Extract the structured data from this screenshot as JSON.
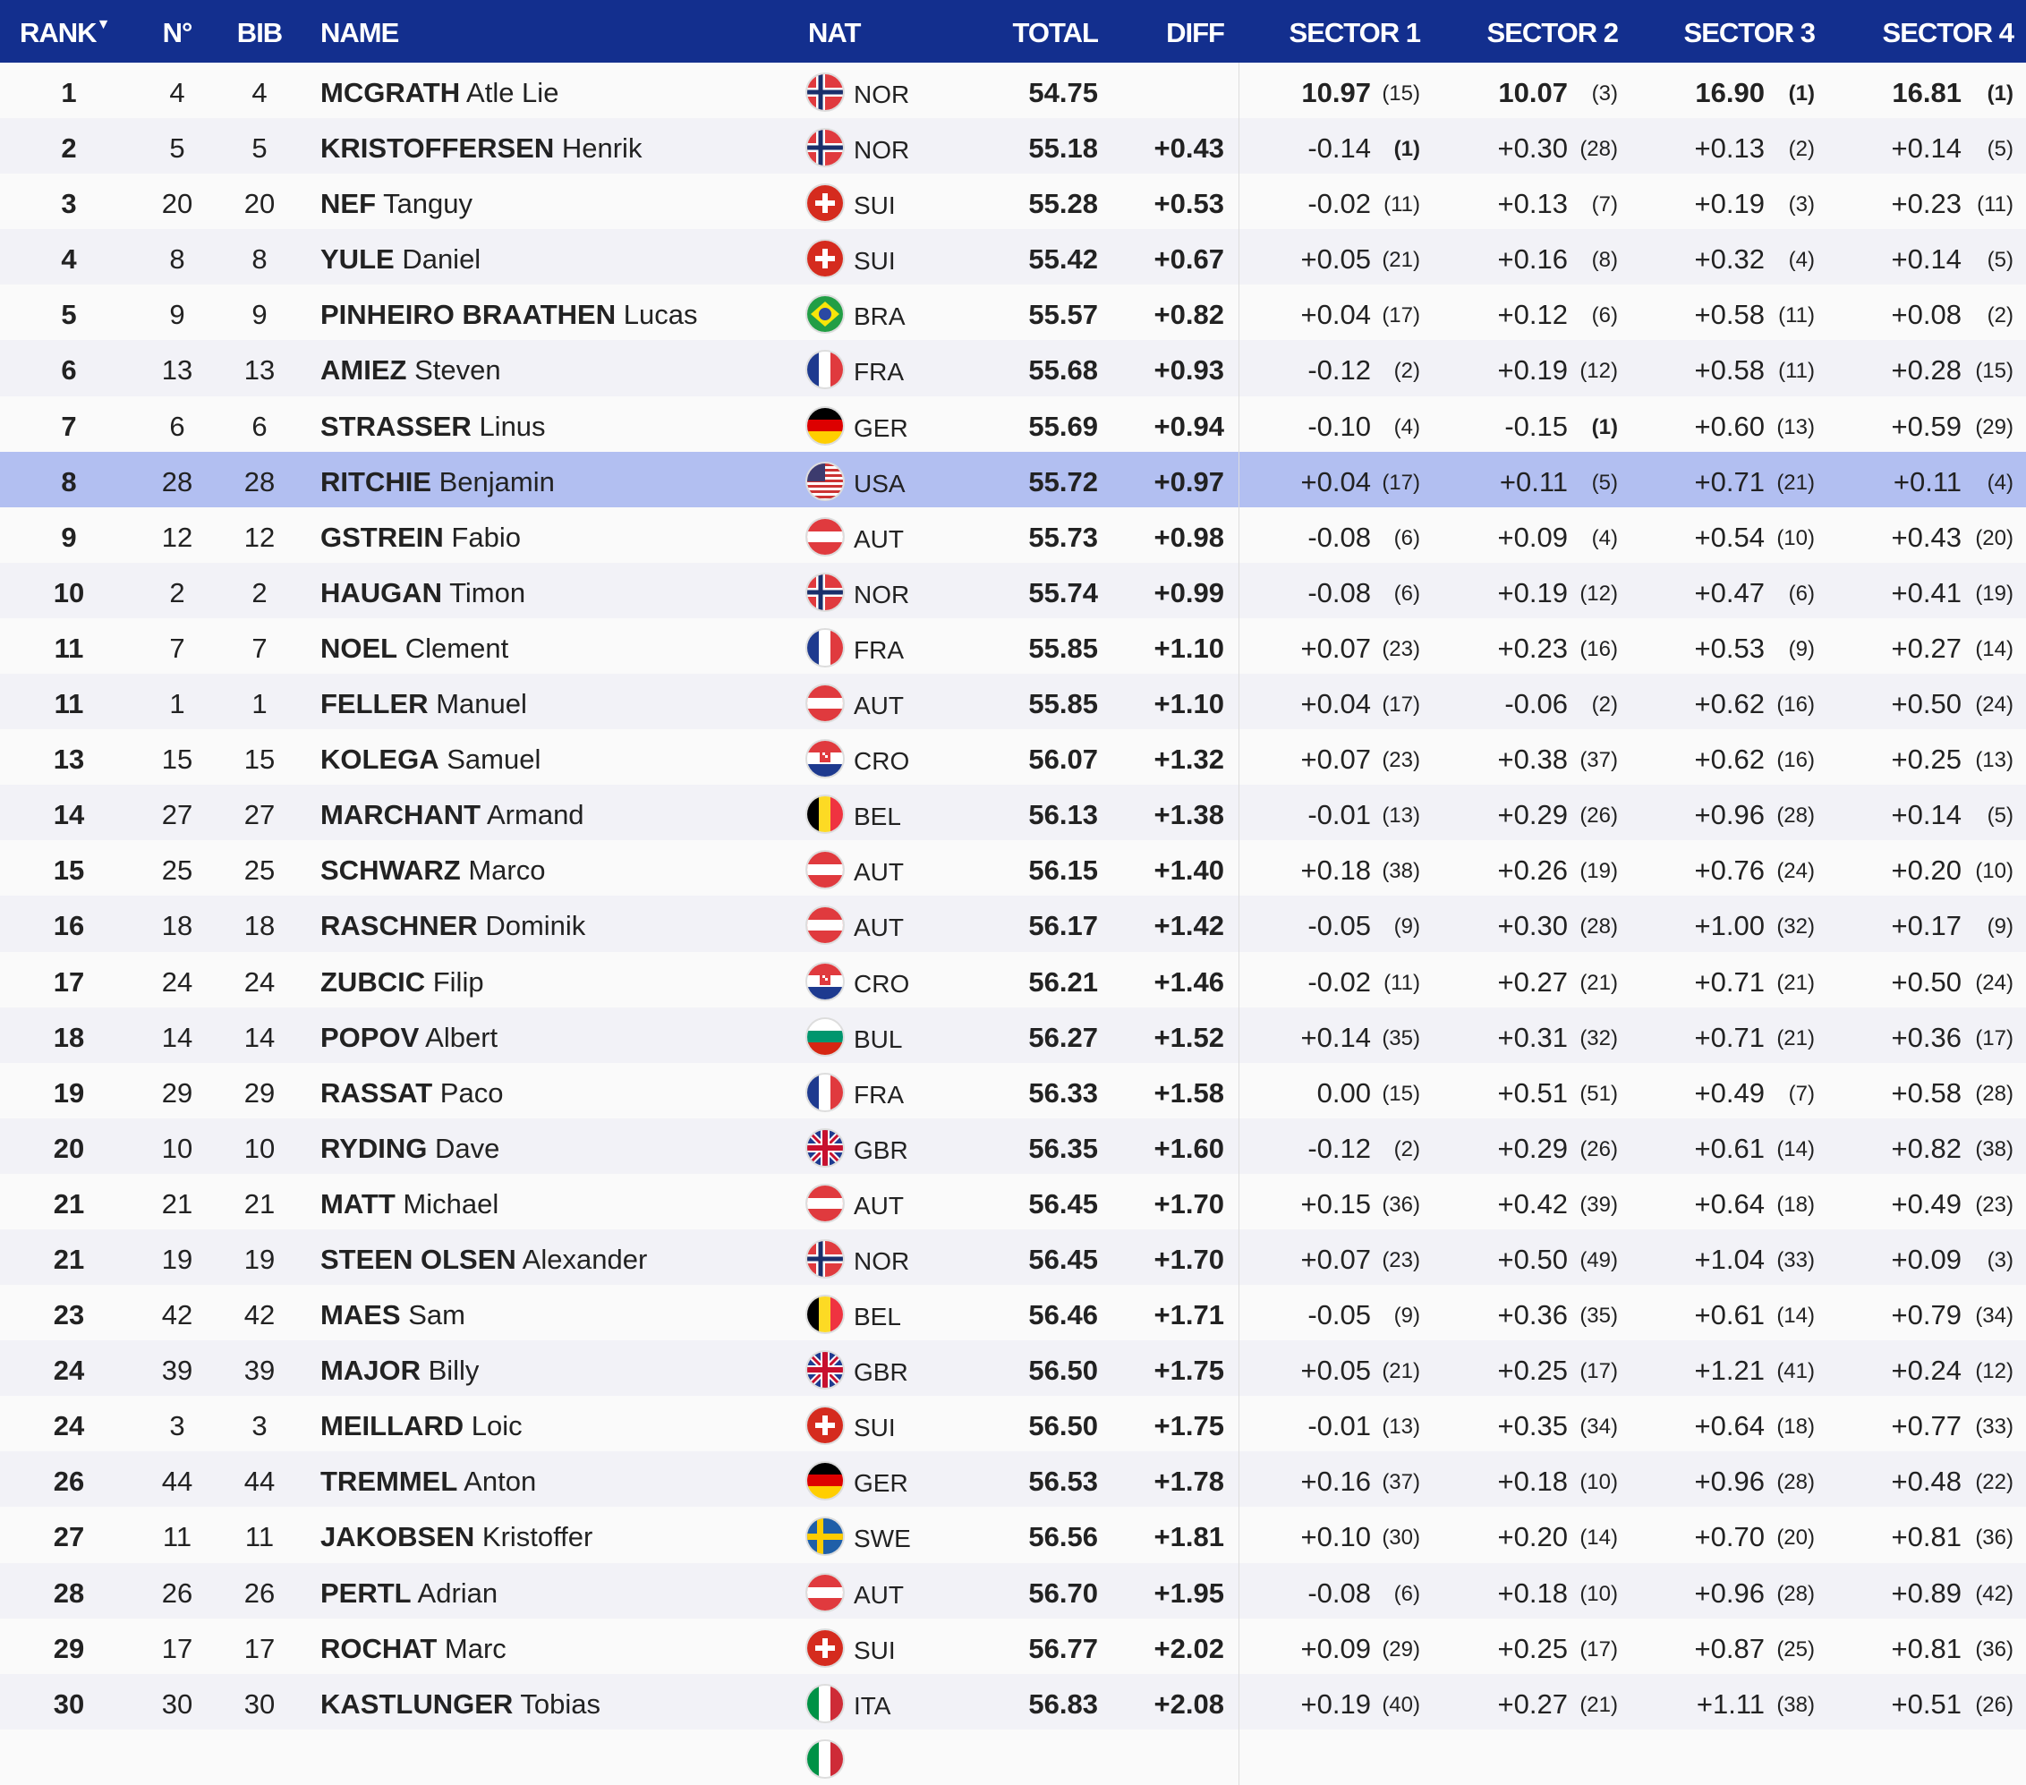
{
  "header": {
    "rank": "RANK",
    "sort_icon": "caret-down",
    "no": "N°",
    "bib": "BIB",
    "name": "NAME",
    "nat": "NAT",
    "total": "TOTAL",
    "diff": "DIFF",
    "s1": "SECTOR 1",
    "s2": "SECTOR 2",
    "s3": "SECTOR 3",
    "s4": "SECTOR 4"
  },
  "colors": {
    "header": "#132f8e",
    "highlight": "#b2bff1"
  },
  "highlighted_rank_row": 8,
  "rows": [
    {
      "rank": "1",
      "no": "4",
      "bib": "4",
      "last": "MCGRATH",
      "first": "Atle Lie",
      "nat": "NOR",
      "total": "54.75",
      "diff": "",
      "s": [
        [
          "10.97",
          "(15)"
        ],
        [
          "10.07",
          "(3)"
        ],
        [
          "16.90",
          "(1)"
        ],
        [
          "16.81",
          "(1)"
        ]
      ]
    },
    {
      "rank": "2",
      "no": "5",
      "bib": "5",
      "last": "KRISTOFFERSEN",
      "first": "Henrik",
      "nat": "NOR",
      "total": "55.18",
      "diff": "+0.43",
      "s": [
        [
          "-0.14",
          "(1)"
        ],
        [
          "+0.30",
          "(28)"
        ],
        [
          "+0.13",
          "(2)"
        ],
        [
          "+0.14",
          "(5)"
        ]
      ]
    },
    {
      "rank": "3",
      "no": "20",
      "bib": "20",
      "last": "NEF",
      "first": "Tanguy",
      "nat": "SUI",
      "total": "55.28",
      "diff": "+0.53",
      "s": [
        [
          "-0.02",
          "(11)"
        ],
        [
          "+0.13",
          "(7)"
        ],
        [
          "+0.19",
          "(3)"
        ],
        [
          "+0.23",
          "(11)"
        ]
      ]
    },
    {
      "rank": "4",
      "no": "8",
      "bib": "8",
      "last": "YULE",
      "first": "Daniel",
      "nat": "SUI",
      "total": "55.42",
      "diff": "+0.67",
      "s": [
        [
          "+0.05",
          "(21)"
        ],
        [
          "+0.16",
          "(8)"
        ],
        [
          "+0.32",
          "(4)"
        ],
        [
          "+0.14",
          "(5)"
        ]
      ]
    },
    {
      "rank": "5",
      "no": "9",
      "bib": "9",
      "last": "PINHEIRO BRAATHEN",
      "first": "Lucas",
      "nat": "BRA",
      "total": "55.57",
      "diff": "+0.82",
      "s": [
        [
          "+0.04",
          "(17)"
        ],
        [
          "+0.12",
          "(6)"
        ],
        [
          "+0.58",
          "(11)"
        ],
        [
          "+0.08",
          "(2)"
        ]
      ]
    },
    {
      "rank": "6",
      "no": "13",
      "bib": "13",
      "last": "AMIEZ",
      "first": "Steven",
      "nat": "FRA",
      "total": "55.68",
      "diff": "+0.93",
      "s": [
        [
          "-0.12",
          "(2)"
        ],
        [
          "+0.19",
          "(12)"
        ],
        [
          "+0.58",
          "(11)"
        ],
        [
          "+0.28",
          "(15)"
        ]
      ]
    },
    {
      "rank": "7",
      "no": "6",
      "bib": "6",
      "last": "STRASSER",
      "first": "Linus",
      "nat": "GER",
      "total": "55.69",
      "diff": "+0.94",
      "s": [
        [
          "-0.10",
          "(4)"
        ],
        [
          "-0.15",
          "(1)"
        ],
        [
          "+0.60",
          "(13)"
        ],
        [
          "+0.59",
          "(29)"
        ]
      ]
    },
    {
      "rank": "8",
      "no": "28",
      "bib": "28",
      "last": "RITCHIE",
      "first": "Benjamin",
      "nat": "USA",
      "total": "55.72",
      "diff": "+0.97",
      "s": [
        [
          "+0.04",
          "(17)"
        ],
        [
          "+0.11",
          "(5)"
        ],
        [
          "+0.71",
          "(21)"
        ],
        [
          "+0.11",
          "(4)"
        ]
      ]
    },
    {
      "rank": "9",
      "no": "12",
      "bib": "12",
      "last": "GSTREIN",
      "first": "Fabio",
      "nat": "AUT",
      "total": "55.73",
      "diff": "+0.98",
      "s": [
        [
          "-0.08",
          "(6)"
        ],
        [
          "+0.09",
          "(4)"
        ],
        [
          "+0.54",
          "(10)"
        ],
        [
          "+0.43",
          "(20)"
        ]
      ]
    },
    {
      "rank": "10",
      "no": "2",
      "bib": "2",
      "last": "HAUGAN",
      "first": "Timon",
      "nat": "NOR",
      "total": "55.74",
      "diff": "+0.99",
      "s": [
        [
          "-0.08",
          "(6)"
        ],
        [
          "+0.19",
          "(12)"
        ],
        [
          "+0.47",
          "(6)"
        ],
        [
          "+0.41",
          "(19)"
        ]
      ]
    },
    {
      "rank": "11",
      "no": "7",
      "bib": "7",
      "last": "NOEL",
      "first": "Clement",
      "nat": "FRA",
      "total": "55.85",
      "diff": "+1.10",
      "s": [
        [
          "+0.07",
          "(23)"
        ],
        [
          "+0.23",
          "(16)"
        ],
        [
          "+0.53",
          "(9)"
        ],
        [
          "+0.27",
          "(14)"
        ]
      ]
    },
    {
      "rank": "11",
      "no": "1",
      "bib": "1",
      "last": "FELLER",
      "first": "Manuel",
      "nat": "AUT",
      "total": "55.85",
      "diff": "+1.10",
      "s": [
        [
          "+0.04",
          "(17)"
        ],
        [
          "-0.06",
          "(2)"
        ],
        [
          "+0.62",
          "(16)"
        ],
        [
          "+0.50",
          "(24)"
        ]
      ]
    },
    {
      "rank": "13",
      "no": "15",
      "bib": "15",
      "last": "KOLEGA",
      "first": "Samuel",
      "nat": "CRO",
      "total": "56.07",
      "diff": "+1.32",
      "s": [
        [
          "+0.07",
          "(23)"
        ],
        [
          "+0.38",
          "(37)"
        ],
        [
          "+0.62",
          "(16)"
        ],
        [
          "+0.25",
          "(13)"
        ]
      ]
    },
    {
      "rank": "14",
      "no": "27",
      "bib": "27",
      "last": "MARCHANT",
      "first": "Armand",
      "nat": "BEL",
      "total": "56.13",
      "diff": "+1.38",
      "s": [
        [
          "-0.01",
          "(13)"
        ],
        [
          "+0.29",
          "(26)"
        ],
        [
          "+0.96",
          "(28)"
        ],
        [
          "+0.14",
          "(5)"
        ]
      ]
    },
    {
      "rank": "15",
      "no": "25",
      "bib": "25",
      "last": "SCHWARZ",
      "first": "Marco",
      "nat": "AUT",
      "total": "56.15",
      "diff": "+1.40",
      "s": [
        [
          "+0.18",
          "(38)"
        ],
        [
          "+0.26",
          "(19)"
        ],
        [
          "+0.76",
          "(24)"
        ],
        [
          "+0.20",
          "(10)"
        ]
      ]
    },
    {
      "rank": "16",
      "no": "18",
      "bib": "18",
      "last": "RASCHNER",
      "first": "Dominik",
      "nat": "AUT",
      "total": "56.17",
      "diff": "+1.42",
      "s": [
        [
          "-0.05",
          "(9)"
        ],
        [
          "+0.30",
          "(28)"
        ],
        [
          "+1.00",
          "(32)"
        ],
        [
          "+0.17",
          "(9)"
        ]
      ]
    },
    {
      "rank": "17",
      "no": "24",
      "bib": "24",
      "last": "ZUBCIC",
      "first": "Filip",
      "nat": "CRO",
      "total": "56.21",
      "diff": "+1.46",
      "s": [
        [
          "-0.02",
          "(11)"
        ],
        [
          "+0.27",
          "(21)"
        ],
        [
          "+0.71",
          "(21)"
        ],
        [
          "+0.50",
          "(24)"
        ]
      ]
    },
    {
      "rank": "18",
      "no": "14",
      "bib": "14",
      "last": "POPOV",
      "first": "Albert",
      "nat": "BUL",
      "total": "56.27",
      "diff": "+1.52",
      "s": [
        [
          "+0.14",
          "(35)"
        ],
        [
          "+0.31",
          "(32)"
        ],
        [
          "+0.71",
          "(21)"
        ],
        [
          "+0.36",
          "(17)"
        ]
      ]
    },
    {
      "rank": "19",
      "no": "29",
      "bib": "29",
      "last": "RASSAT",
      "first": "Paco",
      "nat": "FRA",
      "total": "56.33",
      "diff": "+1.58",
      "s": [
        [
          "0.00",
          "(15)"
        ],
        [
          "+0.51",
          "(51)"
        ],
        [
          "+0.49",
          "(7)"
        ],
        [
          "+0.58",
          "(28)"
        ]
      ]
    },
    {
      "rank": "20",
      "no": "10",
      "bib": "10",
      "last": "RYDING",
      "first": "Dave",
      "nat": "GBR",
      "total": "56.35",
      "diff": "+1.60",
      "s": [
        [
          "-0.12",
          "(2)"
        ],
        [
          "+0.29",
          "(26)"
        ],
        [
          "+0.61",
          "(14)"
        ],
        [
          "+0.82",
          "(38)"
        ]
      ]
    },
    {
      "rank": "21",
      "no": "21",
      "bib": "21",
      "last": "MATT",
      "first": "Michael",
      "nat": "AUT",
      "total": "56.45",
      "diff": "+1.70",
      "s": [
        [
          "+0.15",
          "(36)"
        ],
        [
          "+0.42",
          "(39)"
        ],
        [
          "+0.64",
          "(18)"
        ],
        [
          "+0.49",
          "(23)"
        ]
      ]
    },
    {
      "rank": "21",
      "no": "19",
      "bib": "19",
      "last": "STEEN OLSEN",
      "first": "Alexander",
      "nat": "NOR",
      "total": "56.45",
      "diff": "+1.70",
      "s": [
        [
          "+0.07",
          "(23)"
        ],
        [
          "+0.50",
          "(49)"
        ],
        [
          "+1.04",
          "(33)"
        ],
        [
          "+0.09",
          "(3)"
        ]
      ]
    },
    {
      "rank": "23",
      "no": "42",
      "bib": "42",
      "last": "MAES",
      "first": "Sam",
      "nat": "BEL",
      "total": "56.46",
      "diff": "+1.71",
      "s": [
        [
          "-0.05",
          "(9)"
        ],
        [
          "+0.36",
          "(35)"
        ],
        [
          "+0.61",
          "(14)"
        ],
        [
          "+0.79",
          "(34)"
        ]
      ]
    },
    {
      "rank": "24",
      "no": "39",
      "bib": "39",
      "last": "MAJOR",
      "first": "Billy",
      "nat": "GBR",
      "total": "56.50",
      "diff": "+1.75",
      "s": [
        [
          "+0.05",
          "(21)"
        ],
        [
          "+0.25",
          "(17)"
        ],
        [
          "+1.21",
          "(41)"
        ],
        [
          "+0.24",
          "(12)"
        ]
      ]
    },
    {
      "rank": "24",
      "no": "3",
      "bib": "3",
      "last": "MEILLARD",
      "first": "Loic",
      "nat": "SUI",
      "total": "56.50",
      "diff": "+1.75",
      "s": [
        [
          "-0.01",
          "(13)"
        ],
        [
          "+0.35",
          "(34)"
        ],
        [
          "+0.64",
          "(18)"
        ],
        [
          "+0.77",
          "(33)"
        ]
      ]
    },
    {
      "rank": "26",
      "no": "44",
      "bib": "44",
      "last": "TREMMEL",
      "first": "Anton",
      "nat": "GER",
      "total": "56.53",
      "diff": "+1.78",
      "s": [
        [
          "+0.16",
          "(37)"
        ],
        [
          "+0.18",
          "(10)"
        ],
        [
          "+0.96",
          "(28)"
        ],
        [
          "+0.48",
          "(22)"
        ]
      ]
    },
    {
      "rank": "27",
      "no": "11",
      "bib": "11",
      "last": "JAKOBSEN",
      "first": "Kristoffer",
      "nat": "SWE",
      "total": "56.56",
      "diff": "+1.81",
      "s": [
        [
          "+0.10",
          "(30)"
        ],
        [
          "+0.20",
          "(14)"
        ],
        [
          "+0.70",
          "(20)"
        ],
        [
          "+0.81",
          "(36)"
        ]
      ]
    },
    {
      "rank": "28",
      "no": "26",
      "bib": "26",
      "last": "PERTL",
      "first": "Adrian",
      "nat": "AUT",
      "total": "56.70",
      "diff": "+1.95",
      "s": [
        [
          "-0.08",
          "(6)"
        ],
        [
          "+0.18",
          "(10)"
        ],
        [
          "+0.96",
          "(28)"
        ],
        [
          "+0.89",
          "(42)"
        ]
      ]
    },
    {
      "rank": "29",
      "no": "17",
      "bib": "17",
      "last": "ROCHAT",
      "first": "Marc",
      "nat": "SUI",
      "total": "56.77",
      "diff": "+2.02",
      "s": [
        [
          "+0.09",
          "(29)"
        ],
        [
          "+0.25",
          "(17)"
        ],
        [
          "+0.87",
          "(25)"
        ],
        [
          "+0.81",
          "(36)"
        ]
      ]
    },
    {
      "rank": "30",
      "no": "30",
      "bib": "30",
      "last": "KASTLUNGER",
      "first": "Tobias",
      "nat": "ITA",
      "total": "56.83",
      "diff": "+2.08",
      "s": [
        [
          "+0.19",
          "(40)"
        ],
        [
          "+0.27",
          "(21)"
        ],
        [
          "+1.11",
          "(38)"
        ],
        [
          "+0.51",
          "(26)"
        ]
      ]
    }
  ]
}
